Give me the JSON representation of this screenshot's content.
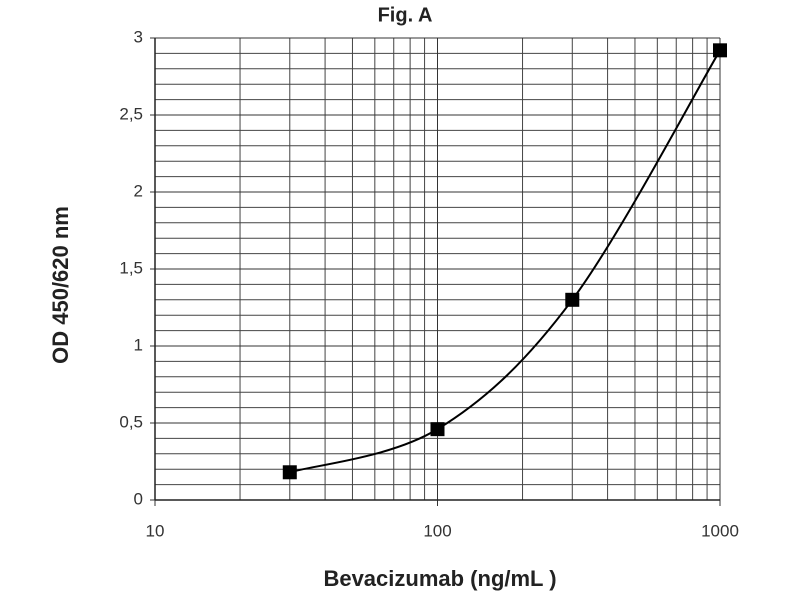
{
  "chart_data": {
    "type": "line",
    "title": "Fig. A",
    "x_label": "Bevacizumab (ng/mL )",
    "y_label": "OD 450/620 nm",
    "x": [
      30,
      100,
      300,
      1000
    ],
    "values": [
      0.18,
      0.46,
      1.3,
      2.92
    ],
    "color": "#000000",
    "xlim": [
      10,
      1000
    ],
    "xticks": [
      10,
      100,
      1000
    ],
    "xscale": "log",
    "ylim": [
      0,
      3
    ],
    "yticks": [
      {
        "value": 0,
        "label": "0"
      },
      {
        "value": 0.5,
        "label": "0,5"
      },
      {
        "value": 1,
        "label": "1"
      },
      {
        "value": 1.5,
        "label": "1,5"
      },
      {
        "value": 2,
        "label": "2"
      },
      {
        "value": 2.5,
        "label": "2,5"
      },
      {
        "value": 3,
        "label": "3"
      }
    ],
    "grid": true,
    "minor_grid": true
  }
}
